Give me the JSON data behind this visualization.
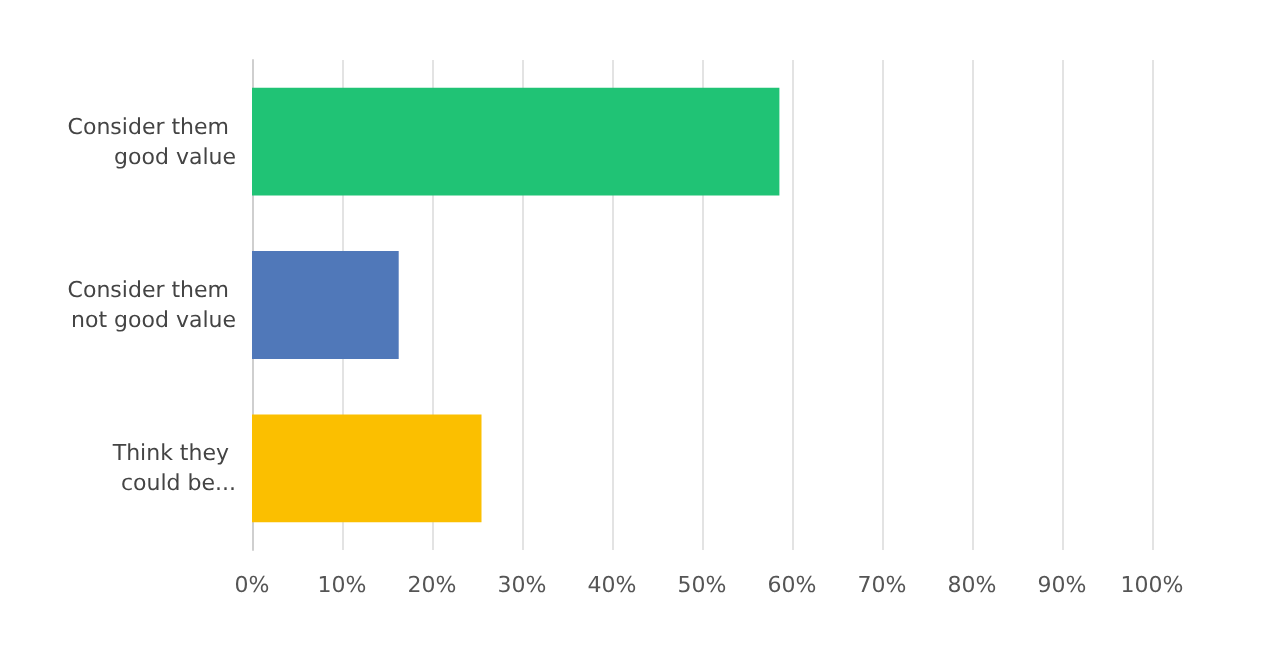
{
  "chart_data": {
    "type": "bar",
    "orientation": "horizontal",
    "categories": [
      "Consider them good value",
      "Consider them not good value",
      "Think they could be..."
    ],
    "values": [
      58.6,
      16.3,
      25.5
    ],
    "colors": [
      "#20c375",
      "#5078b9",
      "#fbbf00"
    ],
    "xlim": [
      0,
      100
    ],
    "xticks": [
      {
        "value": 0,
        "label": "0%"
      },
      {
        "value": 10,
        "label": "10%"
      },
      {
        "value": 20,
        "label": "20%"
      },
      {
        "value": 30,
        "label": "30%"
      },
      {
        "value": 40,
        "label": "40%"
      },
      {
        "value": 50,
        "label": "50%"
      },
      {
        "value": 60,
        "label": "60%"
      },
      {
        "value": 70,
        "label": "70%"
      },
      {
        "value": 80,
        "label": "80%"
      },
      {
        "value": 90,
        "label": "90%"
      },
      {
        "value": 100,
        "label": "100%"
      }
    ],
    "grid": "x"
  }
}
